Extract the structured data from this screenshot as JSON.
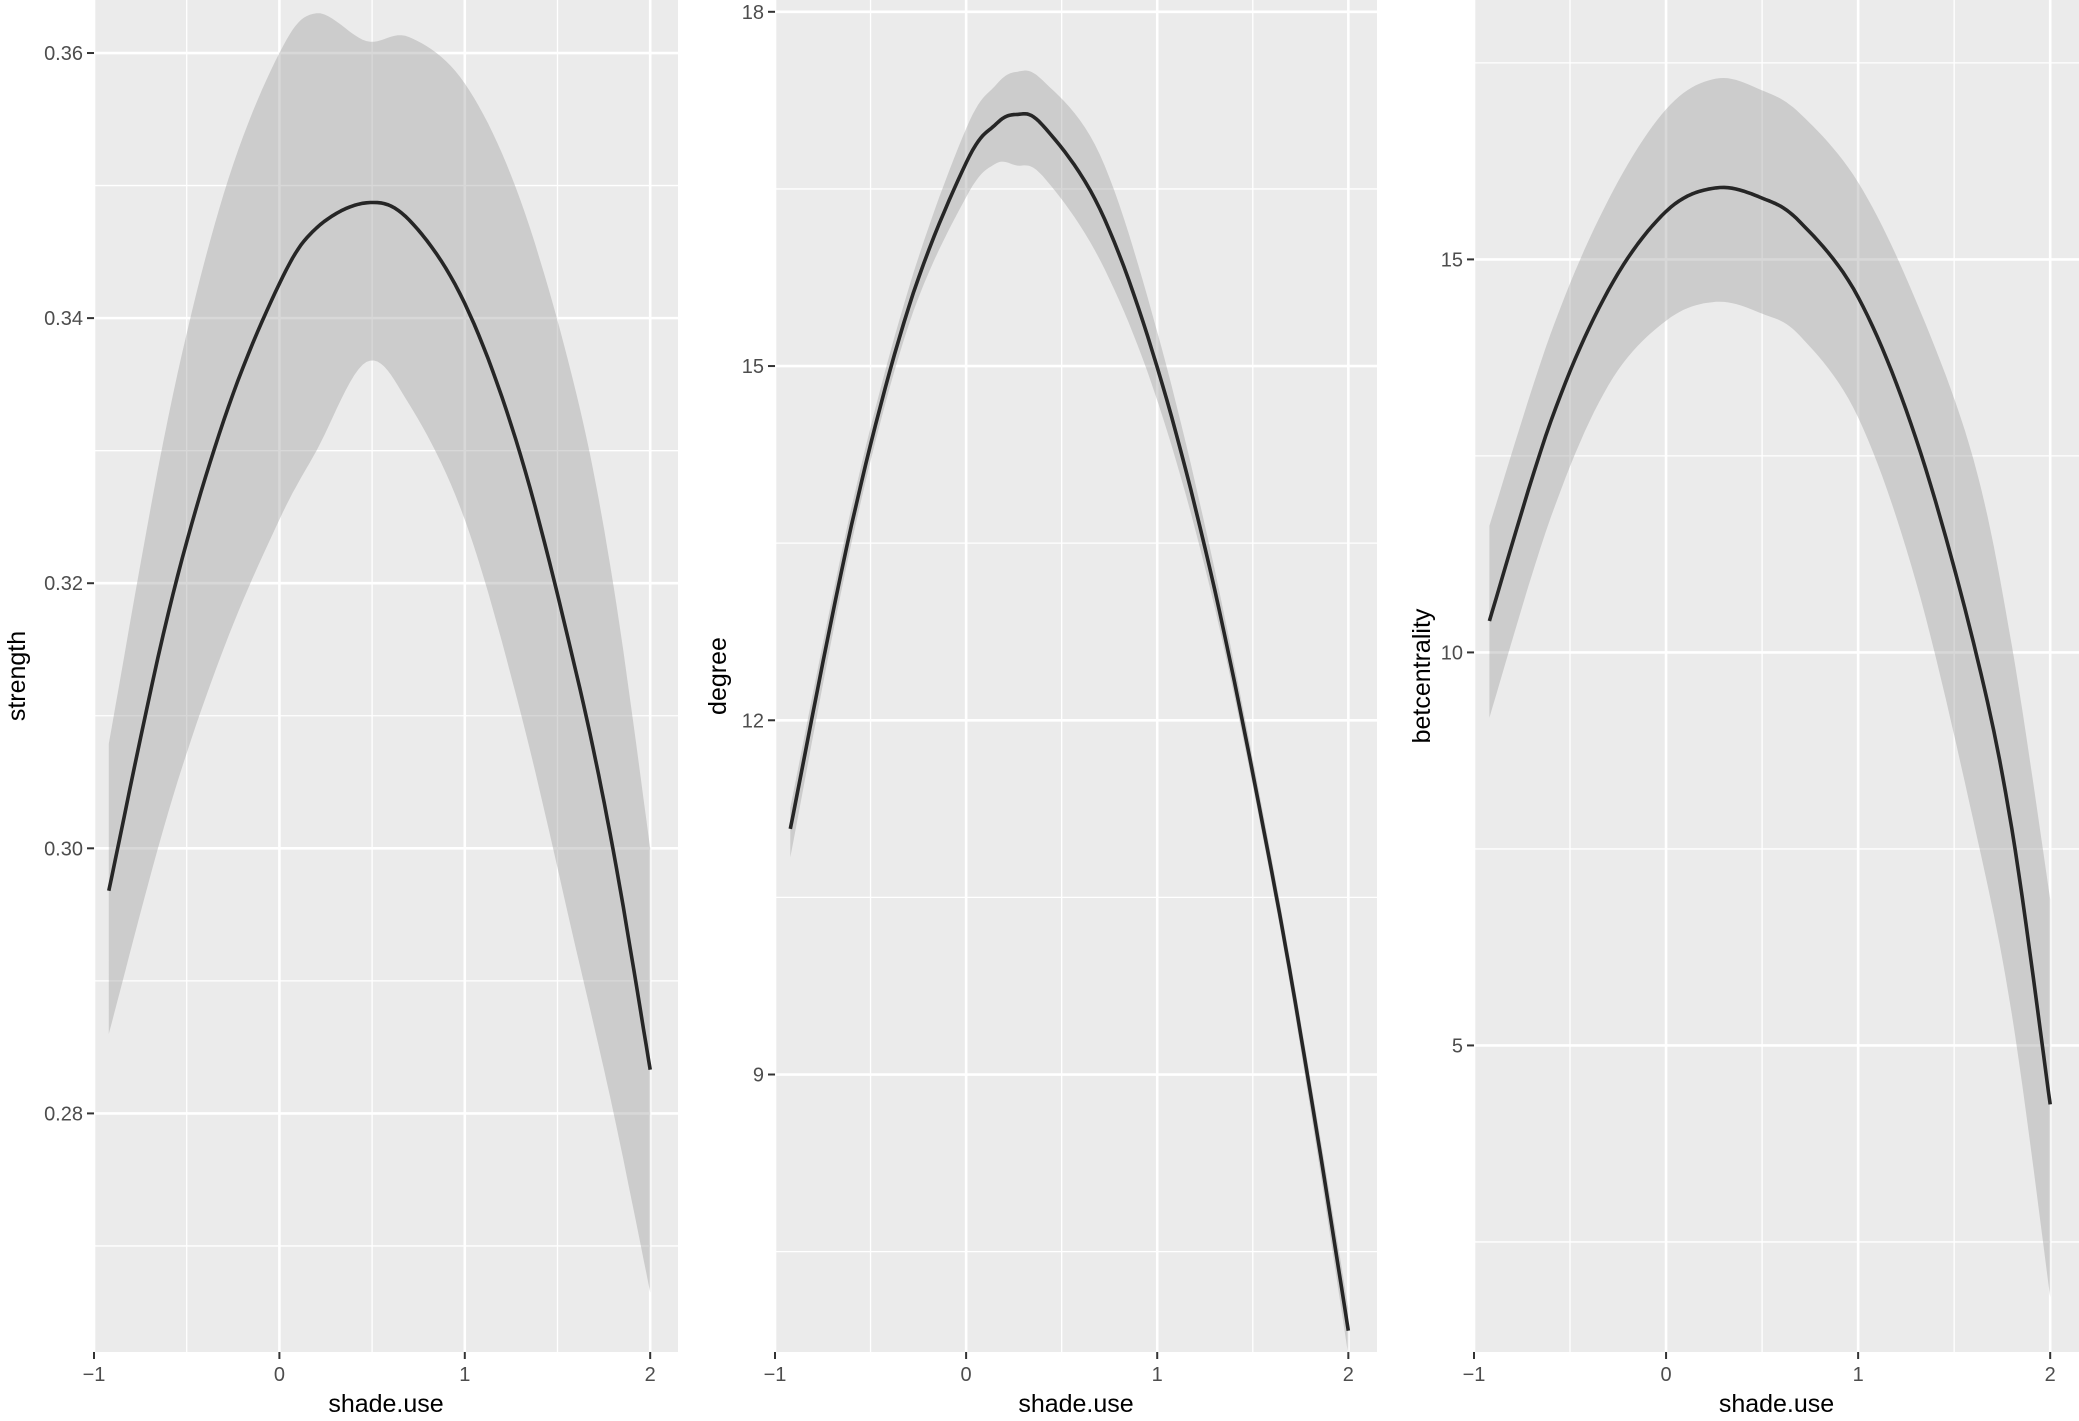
{
  "chart_data": [
    {
      "type": "line",
      "xlabel": "shade.use",
      "ylabel": "strength",
      "xlim": [
        -1,
        2.15
      ],
      "ylim": [
        0.262,
        0.364
      ],
      "x_ticks": [
        -1,
        0,
        1,
        2
      ],
      "x_tick_labels": [
        "−1",
        "0",
        "1",
        "2"
      ],
      "y_ticks": [
        0.28,
        0.3,
        0.32,
        0.34,
        0.36
      ],
      "y_tick_labels": [
        "0.28",
        "0.30",
        "0.32",
        "0.34",
        "0.36"
      ],
      "grid": true,
      "series": [
        {
          "x": [
            -0.92,
            -0.6,
            -0.3,
            0.0,
            0.2,
            0.47,
            0.7,
            1.0,
            1.3,
            1.6,
            1.8,
            2.0
          ],
          "y": [
            0.2968,
            0.3177,
            0.3323,
            0.3426,
            0.3468,
            0.3487,
            0.3474,
            0.3411,
            0.3297,
            0.3133,
            0.2999,
            0.2833
          ],
          "lower": [
            0.286,
            0.3027,
            0.3151,
            0.3248,
            0.33,
            0.3367,
            0.3335,
            0.3248,
            0.3103,
            0.2924,
            0.2802,
            0.2665
          ],
          "upper": [
            0.3079,
            0.3325,
            0.3494,
            0.36,
            0.363,
            0.3609,
            0.3612,
            0.3577,
            0.3489,
            0.3344,
            0.32,
            0.3
          ]
        }
      ]
    },
    {
      "type": "line",
      "xlabel": "shade.use",
      "ylabel": "degree",
      "xlim": [
        -1,
        2.15
      ],
      "ylim": [
        6.65,
        18.1
      ],
      "x_ticks": [
        -1,
        0,
        1,
        2
      ],
      "x_tick_labels": [
        "−1",
        "0",
        "1",
        "2"
      ],
      "y_ticks": [
        9,
        12,
        15,
        18
      ],
      "y_tick_labels": [
        "9",
        "12",
        "15",
        "18"
      ],
      "grid": true,
      "series": [
        {
          "x": [
            -0.92,
            -0.6,
            -0.3,
            0.0,
            0.15,
            0.26,
            0.4,
            0.7,
            1.0,
            1.3,
            1.6,
            1.8,
            2.0
          ],
          "y": [
            11.08,
            13.65,
            15.5,
            16.72,
            17.04,
            17.13,
            17.04,
            16.33,
            14.99,
            13.11,
            10.71,
            8.86,
            6.83
          ],
          "lower": [
            10.84,
            13.5,
            15.35,
            16.43,
            16.71,
            16.7,
            16.61,
            15.9,
            14.71,
            12.96,
            10.61,
            8.72,
            6.62
          ],
          "upper": [
            11.26,
            13.8,
            15.66,
            17.01,
            17.37,
            17.49,
            17.42,
            16.79,
            15.29,
            13.28,
            10.82,
            8.98,
            7.02
          ]
        }
      ]
    },
    {
      "type": "line",
      "xlabel": "shade.use",
      "ylabel": "betcentrality",
      "xlim": [
        -1,
        2.15
      ],
      "ylim": [
        1.1,
        18.3
      ],
      "x_ticks": [
        -1,
        0,
        1,
        2
      ],
      "x_tick_labels": [
        "−1",
        "0",
        "1",
        "2"
      ],
      "y_ticks": [
        5,
        10,
        15
      ],
      "y_tick_labels": [
        "5",
        "10",
        "15"
      ],
      "grid": true,
      "series": [
        {
          "x": [
            -0.92,
            -0.6,
            -0.3,
            0.0,
            0.26,
            0.5,
            0.7,
            1.0,
            1.3,
            1.6,
            1.8,
            2.0
          ],
          "y": [
            10.4,
            12.94,
            14.61,
            15.61,
            15.91,
            15.78,
            15.47,
            14.52,
            12.73,
            10.13,
            7.76,
            4.25
          ],
          "lower": [
            9.17,
            11.72,
            13.4,
            14.22,
            14.46,
            14.31,
            14.02,
            12.99,
            10.91,
            7.86,
            5.4,
            1.8
          ],
          "upper": [
            11.61,
            14.06,
            15.76,
            16.91,
            17.3,
            17.15,
            16.85,
            15.98,
            14.48,
            12.46,
            10.09,
            6.86
          ]
        }
      ]
    }
  ]
}
